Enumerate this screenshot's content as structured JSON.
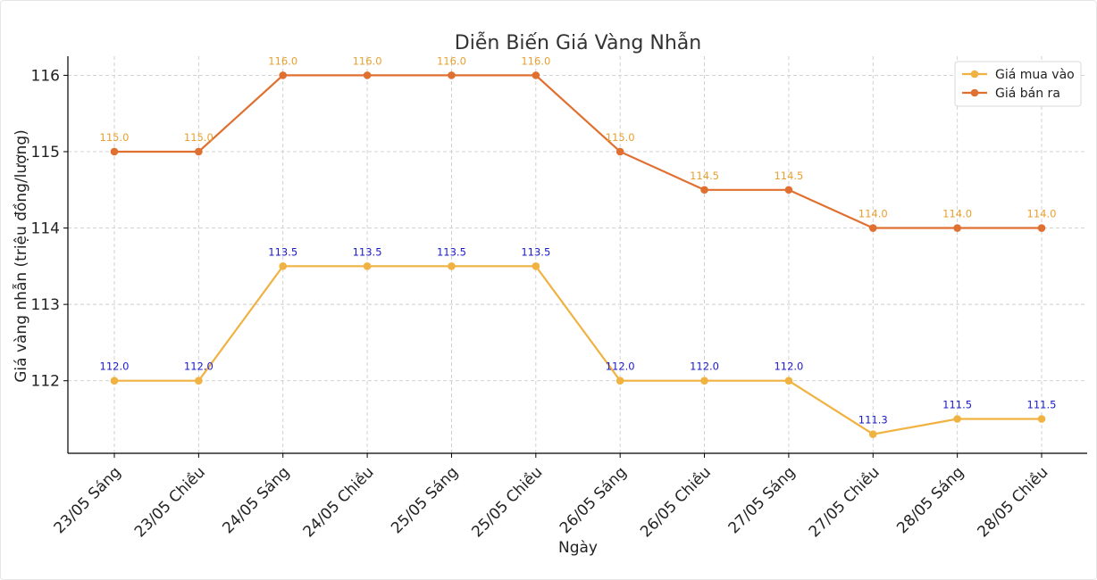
{
  "chart_data": {
    "type": "line",
    "title": "Diễn Biến Giá Vàng Nhẫn",
    "xlabel": "Ngày",
    "ylabel": "Giá vàng nhẫn (triệu đồng/lượng)",
    "ylim": [
      111.05,
      116.25
    ],
    "yticks": [
      112,
      113,
      114,
      115,
      116
    ],
    "grid": true,
    "legend_position": "top-right",
    "categories": [
      "23/05 Sáng",
      "23/05 Chiều",
      "24/05 Sáng",
      "24/05 Chiều",
      "25/05 Sáng",
      "25/05 Chiều",
      "26/05 Sáng",
      "26/05 Chiều",
      "27/05 Sáng",
      "27/05 Chiều",
      "28/05 Sáng",
      "28/05 Chiều"
    ],
    "series": [
      {
        "name": "Giá mua vào",
        "color": "#F0B240",
        "label_color": "#1A1AC8",
        "values": [
          112.0,
          112.0,
          113.5,
          113.5,
          113.5,
          113.5,
          112.0,
          112.0,
          112.0,
          111.3,
          111.5,
          111.5
        ],
        "labels": [
          "112.0",
          "112.0",
          "113.5",
          "113.5",
          "113.5",
          "113.5",
          "112.0",
          "112.0",
          "112.0",
          "111.3",
          "111.5",
          "111.5"
        ]
      },
      {
        "name": "Giá bán ra",
        "color": "#E07030",
        "label_color": "#E8A030",
        "values": [
          115.0,
          115.0,
          116.0,
          116.0,
          116.0,
          116.0,
          115.0,
          114.5,
          114.5,
          114.0,
          114.0,
          114.0
        ],
        "labels": [
          "115.0",
          "115.0",
          "116.0",
          "116.0",
          "116.0",
          "116.0",
          "115.0",
          "114.5",
          "114.5",
          "114.0",
          "114.0",
          "114.0"
        ]
      }
    ]
  }
}
